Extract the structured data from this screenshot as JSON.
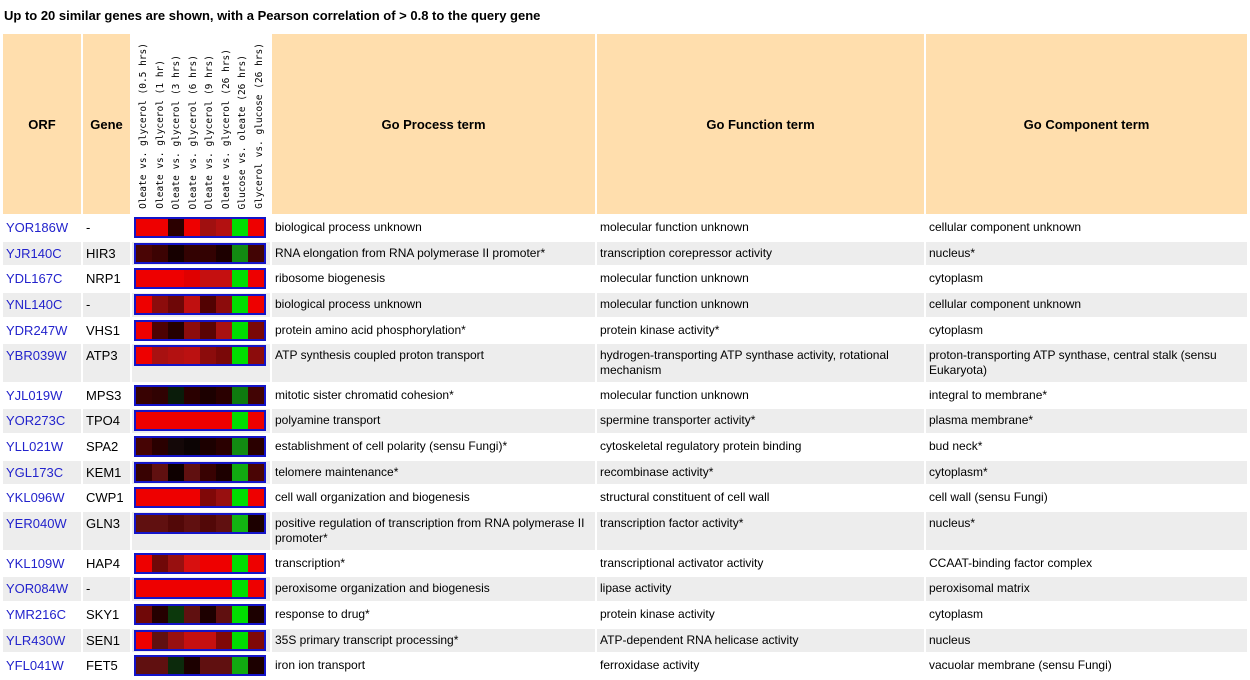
{
  "title": "Up to 20 similar genes are shown, with a Pearson correlation of > 0.8 to the query gene",
  "colors": {
    "header_bg": "#FFDEAD",
    "row_alt_bg": "#ededed",
    "heatmap_border": "#1414c8",
    "orf_link": "#2323cc",
    "upregulated_red": "#ee0000",
    "downregulated_green": "#00dd00"
  },
  "table": {
    "headers": {
      "orf": "ORF",
      "gene": "Gene",
      "process": "Go Process term",
      "function": "Go Function term",
      "component": "Go Component term",
      "heatmap_columns": [
        "Oleate vs. glycerol (0.5 hrs)",
        "Oleate vs. glycerol (1 hr)",
        "Oleate vs. glycerol (3 hrs)",
        "Oleate vs. glycerol (6 hrs)",
        "Oleate vs. glycerol (9 hrs)",
        "Oleate vs. glycerol (26 hrs)",
        "Glucose vs. oleate (26 hrs)",
        "Glycerol vs. glucose (26 hrs)"
      ]
    },
    "rows": [
      {
        "orf": "YOR186W",
        "gene": "-",
        "heatmap": [
          "#ee0000",
          "#ee0000",
          "#2b0000",
          "#ee0000",
          "#a01010",
          "#b31111",
          "#00dd00",
          "#ee0000"
        ],
        "process": "biological process unknown",
        "function": "molecular function unknown",
        "component": "cellular component unknown"
      },
      {
        "orf": "YJR140C",
        "gene": "HIR3",
        "heatmap": [
          "#4a0505",
          "#3c0303",
          "#160000",
          "#330202",
          "#330202",
          "#1d0000",
          "#128a12",
          "#420404"
        ],
        "process": "RNA elongation from RNA polymerase II promoter*",
        "function": "transcription corepressor activity",
        "component": "nucleus*"
      },
      {
        "orf": "YDL167C",
        "gene": "NRP1",
        "heatmap": [
          "#ee0000",
          "#ee0000",
          "#ee0000",
          "#e00000",
          "#c51010",
          "#c51010",
          "#00dd00",
          "#ee0000"
        ],
        "process": "ribosome biogenesis",
        "function": "molecular function unknown",
        "component": "cytoplasm"
      },
      {
        "orf": "YNL140C",
        "gene": "-",
        "heatmap": [
          "#ee0000",
          "#8c0c0c",
          "#6e0707",
          "#c01010",
          "#520202",
          "#8c0c0c",
          "#00dd00",
          "#ee0000"
        ],
        "process": "biological process unknown",
        "function": "molecular function unknown",
        "component": "cellular component unknown"
      },
      {
        "orf": "YDR247W",
        "gene": "VHS1",
        "heatmap": [
          "#ee0000",
          "#4d0202",
          "#250000",
          "#8c0c0c",
          "#5a0404",
          "#a81111",
          "#00dd00",
          "#7a0808"
        ],
        "process": "protein amino acid phosphorylation*",
        "function": "protein kinase activity*",
        "component": "cytoplasm"
      },
      {
        "orf": "YBR039W",
        "gene": "ATP3",
        "heatmap": [
          "#ee0000",
          "#a81111",
          "#b31111",
          "#bb1111",
          "#8c0c0c",
          "#7a0808",
          "#00dd00",
          "#8c0c0c"
        ],
        "process": "ATP synthesis coupled proton transport",
        "function": "hydrogen-transporting ATP synthase activity, rotational mechanism",
        "component": "proton-transporting ATP synthase, central stalk (sensu Eukaryota)"
      },
      {
        "orf": "YJL019W",
        "gene": "MPS3",
        "heatmap": [
          "#380202",
          "#300202",
          "#0a1c0a",
          "#2a0000",
          "#1c0000",
          "#2a0000",
          "#0f7a0f",
          "#420404"
        ],
        "process": "mitotic sister chromatid cohesion*",
        "function": "molecular function unknown",
        "component": "integral to membrane*"
      },
      {
        "orf": "YOR273C",
        "gene": "TPO4",
        "heatmap": [
          "#ee0000",
          "#ee0000",
          "#ee0000",
          "#ee0000",
          "#ee0000",
          "#ee0000",
          "#00dd00",
          "#ee0000"
        ],
        "process": "polyamine transport",
        "function": "spermine transporter activity*",
        "component": "plasma membrane*"
      },
      {
        "orf": "YLL021W",
        "gene": "SPA2",
        "heatmap": [
          "#460404",
          "#2a0000",
          "#140808",
          "#0c0404",
          "#1c0000",
          "#2a0000",
          "#128a12",
          "#2a0000"
        ],
        "process": "establishment of cell polarity (sensu Fungi)*",
        "function": "cytoskeletal regulatory protein binding",
        "component": "bud neck*"
      },
      {
        "orf": "YGL173C",
        "gene": "KEM1",
        "heatmap": [
          "#380202",
          "#601010",
          "#0e0000",
          "#601010",
          "#380202",
          "#1d0000",
          "#11aa11",
          "#4a0505"
        ],
        "process": "telomere maintenance*",
        "function": "recombinase activity*",
        "component": "cytoplasm*"
      },
      {
        "orf": "YKL096W",
        "gene": "CWP1",
        "heatmap": [
          "#ee0000",
          "#ee0000",
          "#ee0000",
          "#ee0000",
          "#800808",
          "#981010",
          "#00dd00",
          "#ee0000"
        ],
        "process": "cell wall organization and biogenesis",
        "function": "structural constituent of cell wall",
        "component": "cell wall (sensu Fungi)"
      },
      {
        "orf": "YER040W",
        "gene": "GLN3",
        "heatmap": [
          "#601010",
          "#601010",
          "#520808",
          "#601010",
          "#520808",
          "#601010",
          "#12b412",
          "#1c0000"
        ],
        "process": "positive regulation of transcription from RNA polymerase II promoter*",
        "function": "transcription factor activity*",
        "component": "nucleus*"
      },
      {
        "orf": "YKL109W",
        "gene": "HAP4",
        "heatmap": [
          "#ee0000",
          "#700808",
          "#981010",
          "#d81010",
          "#ee0000",
          "#ee0000",
          "#00dd00",
          "#ee0000"
        ],
        "process": "transcription*",
        "function": "transcriptional activator activity",
        "component": "CCAAT-binding factor complex"
      },
      {
        "orf": "YOR084W",
        "gene": "-",
        "heatmap": [
          "#ee0000",
          "#ee0000",
          "#ee0000",
          "#ee0000",
          "#ee0000",
          "#ee0000",
          "#00dd00",
          "#ee0000"
        ],
        "process": "peroxisome organization and biogenesis",
        "function": "lipase activity",
        "component": "peroxisomal matrix"
      },
      {
        "orf": "YMR216C",
        "gene": "SKY1",
        "heatmap": [
          "#700808",
          "#250000",
          "#0c380c",
          "#601010",
          "#1d0000",
          "#601010",
          "#00dd00",
          "#1c0000"
        ],
        "process": "response to drug*",
        "function": "protein kinase activity",
        "component": "cytoplasm"
      },
      {
        "orf": "YLR430W",
        "gene": "SEN1",
        "heatmap": [
          "#ee0000",
          "#601010",
          "#981010",
          "#c51010",
          "#c51010",
          "#800808",
          "#00dd00",
          "#800808"
        ],
        "process": "35S primary transcript processing*",
        "function": "ATP-dependent RNA helicase activity",
        "component": "nucleus"
      },
      {
        "orf": "YFL041W",
        "gene": "FET5",
        "heatmap": [
          "#601010",
          "#601010",
          "#0c2a0c",
          "#1c0000",
          "#601010",
          "#601010",
          "#11aa11",
          "#1c0000"
        ],
        "process": "iron ion transport",
        "function": "ferroxidase activity",
        "component": "vacuolar membrane (sensu Fungi)"
      }
    ]
  }
}
